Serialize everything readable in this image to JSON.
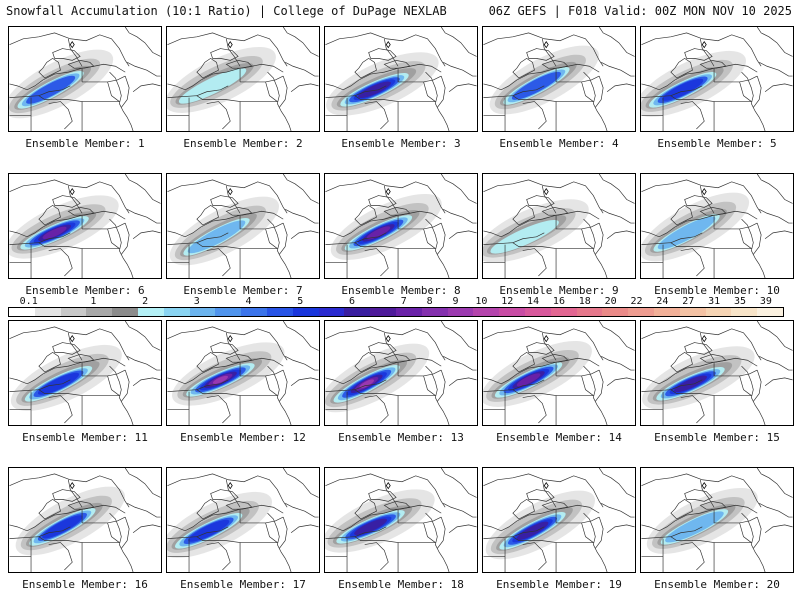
{
  "header": {
    "title": "Snowfall Accumulation (10:1 Ratio) | College of DuPage NEXLAB",
    "run_info": "06Z GEFS | F018 Valid: 00Z MON NOV 10 2025"
  },
  "panels": [
    {
      "label": "Ensemble Member: 1",
      "intensity": 2.5
    },
    {
      "label": "Ensemble Member: 2",
      "intensity": 1.5
    },
    {
      "label": "Ensemble Member: 3",
      "intensity": 3.2
    },
    {
      "label": "Ensemble Member: 4",
      "intensity": 2.2
    },
    {
      "label": "Ensemble Member: 5",
      "intensity": 3.0
    },
    {
      "label": "Ensemble Member: 6",
      "intensity": 4.0
    },
    {
      "label": "Ensemble Member: 7",
      "intensity": 2.0
    },
    {
      "label": "Ensemble Member: 8",
      "intensity": 3.8
    },
    {
      "label": "Ensemble Member: 9",
      "intensity": 1.5
    },
    {
      "label": "Ensemble Member: 10",
      "intensity": 1.8
    },
    {
      "label": "Ensemble Member: 11",
      "intensity": 3.0
    },
    {
      "label": "Ensemble Member: 12",
      "intensity": 4.5
    },
    {
      "label": "Ensemble Member: 13",
      "intensity": 4.2
    },
    {
      "label": "Ensemble Member: 14",
      "intensity": 4.0
    },
    {
      "label": "Ensemble Member: 15",
      "intensity": 3.2
    },
    {
      "label": "Ensemble Member: 16",
      "intensity": 2.8
    },
    {
      "label": "Ensemble Member: 17",
      "intensity": 2.6
    },
    {
      "label": "Ensemble Member: 18",
      "intensity": 3.5
    },
    {
      "label": "Ensemble Member: 19",
      "intensity": 3.4
    },
    {
      "label": "Ensemble Member: 20",
      "intensity": 1.8
    }
  ],
  "legend": {
    "labels": [
      "0.1",
      "1",
      "2",
      "3",
      "4",
      "5",
      "6",
      "7",
      "8",
      "9",
      "10",
      "12",
      "14",
      "16",
      "18",
      "20",
      "22",
      "24",
      "27",
      "31",
      "35",
      "39"
    ],
    "colors": [
      "#ffffff",
      "#e4e4e4",
      "#c8c8c8",
      "#a8a8a8",
      "#8c8c8c",
      "#b4f0f6",
      "#8ad4f2",
      "#6cb4ee",
      "#5094ec",
      "#3c74ea",
      "#2854e6",
      "#1a36dc",
      "#2a2ad0",
      "#3a1ea0",
      "#4e1a9a",
      "#6a22a8",
      "#8430ae",
      "#9c3ab0",
      "#b444ac",
      "#c84ca4",
      "#d8589c",
      "#e26692",
      "#e6788c",
      "#ea8a88",
      "#ee9c90",
      "#f2b098",
      "#f4c2a4",
      "#f6d4b4",
      "#f8e4c8",
      "#fbf1e0"
    ]
  }
}
